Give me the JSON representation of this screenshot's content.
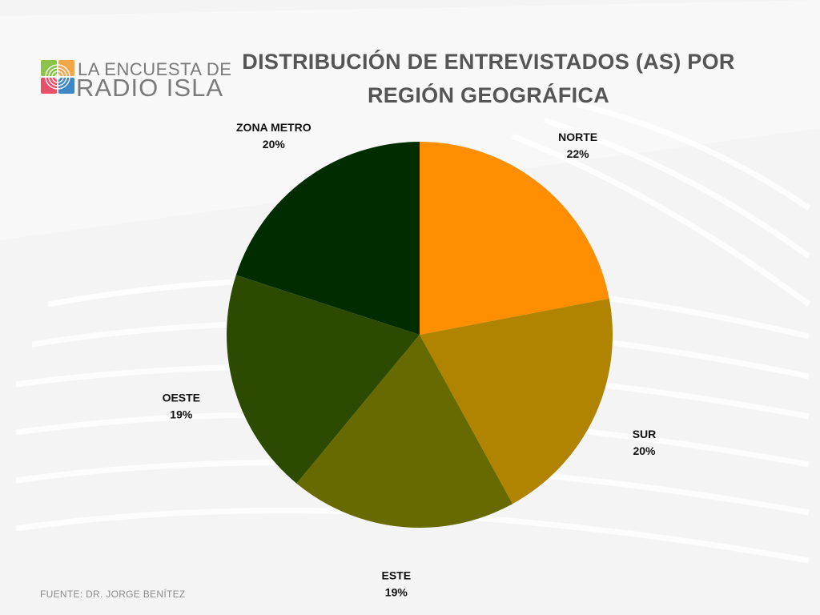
{
  "logo": {
    "line1": "LA ENCUESTA DE",
    "line2": "RADIO ISLA",
    "colors": [
      "#8cc34a",
      "#f2a64a",
      "#e8506a",
      "#3f86c4"
    ]
  },
  "title": "DISTRIBUCIÓN DE ENTREVISTADOS (AS) POR REGIÓN GEOGRÁFICA",
  "source": "FUENTE: DR. JORGE BENÍTEZ",
  "chart_data": {
    "type": "pie",
    "title": "DISTRIBUCIÓN DE ENTREVISTADOS (AS) POR REGIÓN GEOGRÁFICA",
    "start": "12 o'clock, clockwise",
    "slices": [
      {
        "label": "NORTE",
        "value": 22,
        "display": "22%",
        "color": "#ff8f00"
      },
      {
        "label": "SUR",
        "value": 20,
        "display": "20%",
        "color": "#b08400"
      },
      {
        "label": "ESTE",
        "value": 19,
        "display": "19%",
        "color": "#676a00"
      },
      {
        "label": "OESTE",
        "value": 19,
        "display": "19%",
        "color": "#2c4a00"
      },
      {
        "label": "ZONA METRO",
        "value": 20,
        "display": "20%",
        "color": "#002c00"
      }
    ]
  }
}
